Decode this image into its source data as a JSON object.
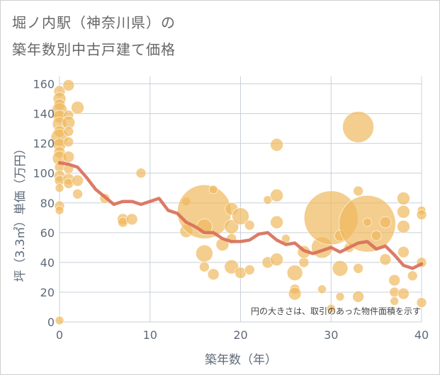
{
  "title": {
    "line1": "堀ノ内駅（神奈川県）の",
    "line2": "築年数別中古戸建て価格"
  },
  "chart_data": {
    "type": "scatter",
    "xlabel": "築年数（年）",
    "ylabel": "坪（3.3㎡）単価（万円）",
    "xlim": [
      0,
      40
    ],
    "ylim": [
      0,
      165
    ],
    "xticks": [
      0,
      10,
      20,
      30,
      40
    ],
    "yticks": [
      0,
      20,
      40,
      60,
      80,
      100,
      120,
      140,
      160
    ],
    "x_tick_labels": [
      "0",
      "10",
      "20",
      "30",
      "40"
    ],
    "y_tick_labels": [
      "0",
      "20",
      "40",
      "60",
      "80",
      "100",
      "120",
      "140",
      "160"
    ],
    "grid": true,
    "note": "円の大きさは、取引のあった物件面積を示す",
    "colors": {
      "bubble": "#f0b95e",
      "line": "#d9705a",
      "grid": "#c9d0d8"
    },
    "trend": {
      "x": [
        0,
        1,
        2,
        3,
        4,
        5,
        6,
        7,
        8,
        9,
        10,
        11,
        12,
        13,
        14,
        15,
        16,
        17,
        18,
        19,
        20,
        21,
        22,
        23,
        24,
        25,
        26,
        27,
        28,
        29,
        30,
        31,
        32,
        33,
        34,
        35,
        36,
        37,
        38,
        39,
        40
      ],
      "y": [
        107,
        106,
        104,
        97,
        89,
        84,
        79,
        81,
        81,
        79,
        81,
        83,
        75,
        73,
        67,
        64,
        60,
        60,
        56,
        54,
        54,
        55,
        59,
        60,
        55,
        52,
        53,
        48,
        46,
        48,
        50,
        47,
        50,
        53,
        54,
        49,
        51,
        45,
        38,
        36,
        39
      ]
    },
    "bubbles": [
      {
        "x": 0,
        "y": 155,
        "s": 8
      },
      {
        "x": 0,
        "y": 150,
        "s": 9
      },
      {
        "x": 0,
        "y": 146,
        "s": 8
      },
      {
        "x": 0,
        "y": 142,
        "s": 11
      },
      {
        "x": 0,
        "y": 138,
        "s": 9
      },
      {
        "x": 0,
        "y": 133,
        "s": 10
      },
      {
        "x": 0,
        "y": 128,
        "s": 8
      },
      {
        "x": 0,
        "y": 124,
        "s": 12
      },
      {
        "x": 0,
        "y": 119,
        "s": 9
      },
      {
        "x": 0,
        "y": 114,
        "s": 8
      },
      {
        "x": 0,
        "y": 110,
        "s": 10
      },
      {
        "x": 0,
        "y": 104,
        "s": 7
      },
      {
        "x": 0,
        "y": 98,
        "s": 8
      },
      {
        "x": 0,
        "y": 95,
        "s": 7
      },
      {
        "x": 0,
        "y": 90,
        "s": 6
      },
      {
        "x": 0,
        "y": 78,
        "s": 7
      },
      {
        "x": 0,
        "y": 75,
        "s": 6
      },
      {
        "x": 0,
        "y": 1,
        "s": 6
      },
      {
        "x": 1,
        "y": 159,
        "s": 8
      },
      {
        "x": 1,
        "y": 139,
        "s": 7
      },
      {
        "x": 1,
        "y": 134,
        "s": 9
      },
      {
        "x": 1,
        "y": 128,
        "s": 7
      },
      {
        "x": 1,
        "y": 121,
        "s": 7
      },
      {
        "x": 1,
        "y": 111,
        "s": 8
      },
      {
        "x": 1,
        "y": 103,
        "s": 7
      },
      {
        "x": 1,
        "y": 96,
        "s": 8
      },
      {
        "x": 1,
        "y": 93,
        "s": 7
      },
      {
        "x": 2,
        "y": 144,
        "s": 9
      },
      {
        "x": 2,
        "y": 95,
        "s": 8
      },
      {
        "x": 2,
        "y": 86,
        "s": 7
      },
      {
        "x": 5,
        "y": 83,
        "s": 7
      },
      {
        "x": 7,
        "y": 69,
        "s": 8
      },
      {
        "x": 7,
        "y": 67,
        "s": 7
      },
      {
        "x": 8,
        "y": 69,
        "s": 8
      },
      {
        "x": 9,
        "y": 100,
        "s": 7
      },
      {
        "x": 14,
        "y": 81,
        "s": 6
      },
      {
        "x": 14,
        "y": 61,
        "s": 9
      },
      {
        "x": 16,
        "y": 74,
        "s": 38
      },
      {
        "x": 16,
        "y": 64,
        "s": 11
      },
      {
        "x": 16,
        "y": 46,
        "s": 12
      },
      {
        "x": 16,
        "y": 37,
        "s": 7
      },
      {
        "x": 17,
        "y": 89,
        "s": 6
      },
      {
        "x": 17,
        "y": 32,
        "s": 8
      },
      {
        "x": 18,
        "y": 52,
        "s": 9
      },
      {
        "x": 19,
        "y": 76,
        "s": 9
      },
      {
        "x": 19,
        "y": 64,
        "s": 10
      },
      {
        "x": 19,
        "y": 56,
        "s": 7
      },
      {
        "x": 19,
        "y": 37,
        "s": 10
      },
      {
        "x": 20,
        "y": 71,
        "s": 12
      },
      {
        "x": 20,
        "y": 33,
        "s": 8
      },
      {
        "x": 21,
        "y": 35,
        "s": 7
      },
      {
        "x": 21,
        "y": 65,
        "s": 7
      },
      {
        "x": 23,
        "y": 40,
        "s": 8
      },
      {
        "x": 23,
        "y": 82,
        "s": 6
      },
      {
        "x": 24,
        "y": 119,
        "s": 9
      },
      {
        "x": 24,
        "y": 85,
        "s": 9
      },
      {
        "x": 24,
        "y": 67,
        "s": 9
      },
      {
        "x": 24,
        "y": 42,
        "s": 9
      },
      {
        "x": 25,
        "y": 56,
        "s": 6
      },
      {
        "x": 26,
        "y": 33,
        "s": 11
      },
      {
        "x": 26,
        "y": 22,
        "s": 7
      },
      {
        "x": 26,
        "y": 19,
        "s": 9
      },
      {
        "x": 27,
        "y": 40,
        "s": 7
      },
      {
        "x": 27,
        "y": 47,
        "s": 9
      },
      {
        "x": 29,
        "y": 50,
        "s": 15
      },
      {
        "x": 29,
        "y": 22,
        "s": 6
      },
      {
        "x": 30,
        "y": 70,
        "s": 38
      },
      {
        "x": 30,
        "y": 9,
        "s": 6
      },
      {
        "x": 31,
        "y": 58,
        "s": 8
      },
      {
        "x": 31,
        "y": 36,
        "s": 11
      },
      {
        "x": 31,
        "y": 17,
        "s": 6
      },
      {
        "x": 32,
        "y": 50,
        "s": 7
      },
      {
        "x": 33,
        "y": 131,
        "s": 22
      },
      {
        "x": 33,
        "y": 88,
        "s": 7
      },
      {
        "x": 33,
        "y": 36,
        "s": 7
      },
      {
        "x": 33,
        "y": 17,
        "s": 8
      },
      {
        "x": 34,
        "y": 66,
        "s": 40
      },
      {
        "x": 34,
        "y": 67,
        "s": 6
      },
      {
        "x": 35,
        "y": 58,
        "s": 7
      },
      {
        "x": 36,
        "y": 67,
        "s": 8
      },
      {
        "x": 36,
        "y": 42,
        "s": 8
      },
      {
        "x": 37,
        "y": 28,
        "s": 8
      },
      {
        "x": 37,
        "y": 20,
        "s": 7
      },
      {
        "x": 37,
        "y": 14,
        "s": 6
      },
      {
        "x": 38,
        "y": 83,
        "s": 9
      },
      {
        "x": 38,
        "y": 74,
        "s": 9
      },
      {
        "x": 38,
        "y": 64,
        "s": 9
      },
      {
        "x": 38,
        "y": 47,
        "s": 8
      },
      {
        "x": 38,
        "y": 19,
        "s": 8
      },
      {
        "x": 39,
        "y": 31,
        "s": 7
      },
      {
        "x": 40,
        "y": 75,
        "s": 6
      },
      {
        "x": 40,
        "y": 72,
        "s": 7
      },
      {
        "x": 40,
        "y": 40,
        "s": 7
      },
      {
        "x": 40,
        "y": 13,
        "s": 7
      }
    ]
  }
}
